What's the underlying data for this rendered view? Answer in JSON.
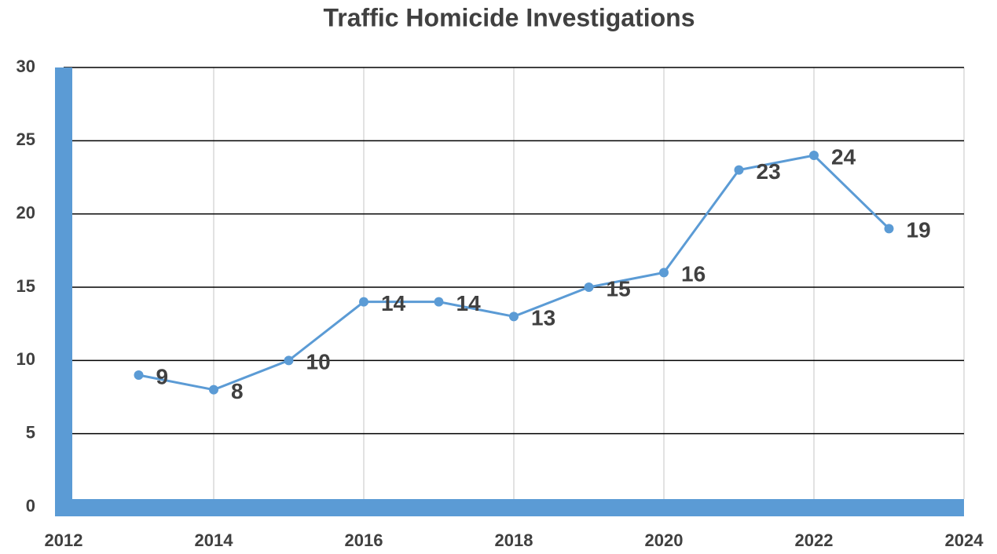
{
  "chart_data": {
    "type": "line",
    "title": "Traffic Homicide Investigations",
    "x": [
      2013,
      2014,
      2015,
      2016,
      2017,
      2018,
      2019,
      2020,
      2021,
      2022,
      2023
    ],
    "values": [
      9,
      8,
      10,
      14,
      14,
      13,
      15,
      16,
      23,
      24,
      19
    ],
    "color": "#5b9bd5",
    "xlim": [
      2012,
      2024
    ],
    "xticks": [
      2012,
      2014,
      2016,
      2018,
      2020,
      2022,
      2024
    ],
    "ylim": [
      0,
      30
    ],
    "yticks": [
      0,
      5,
      10,
      15,
      20,
      25,
      30
    ],
    "grid": true
  }
}
